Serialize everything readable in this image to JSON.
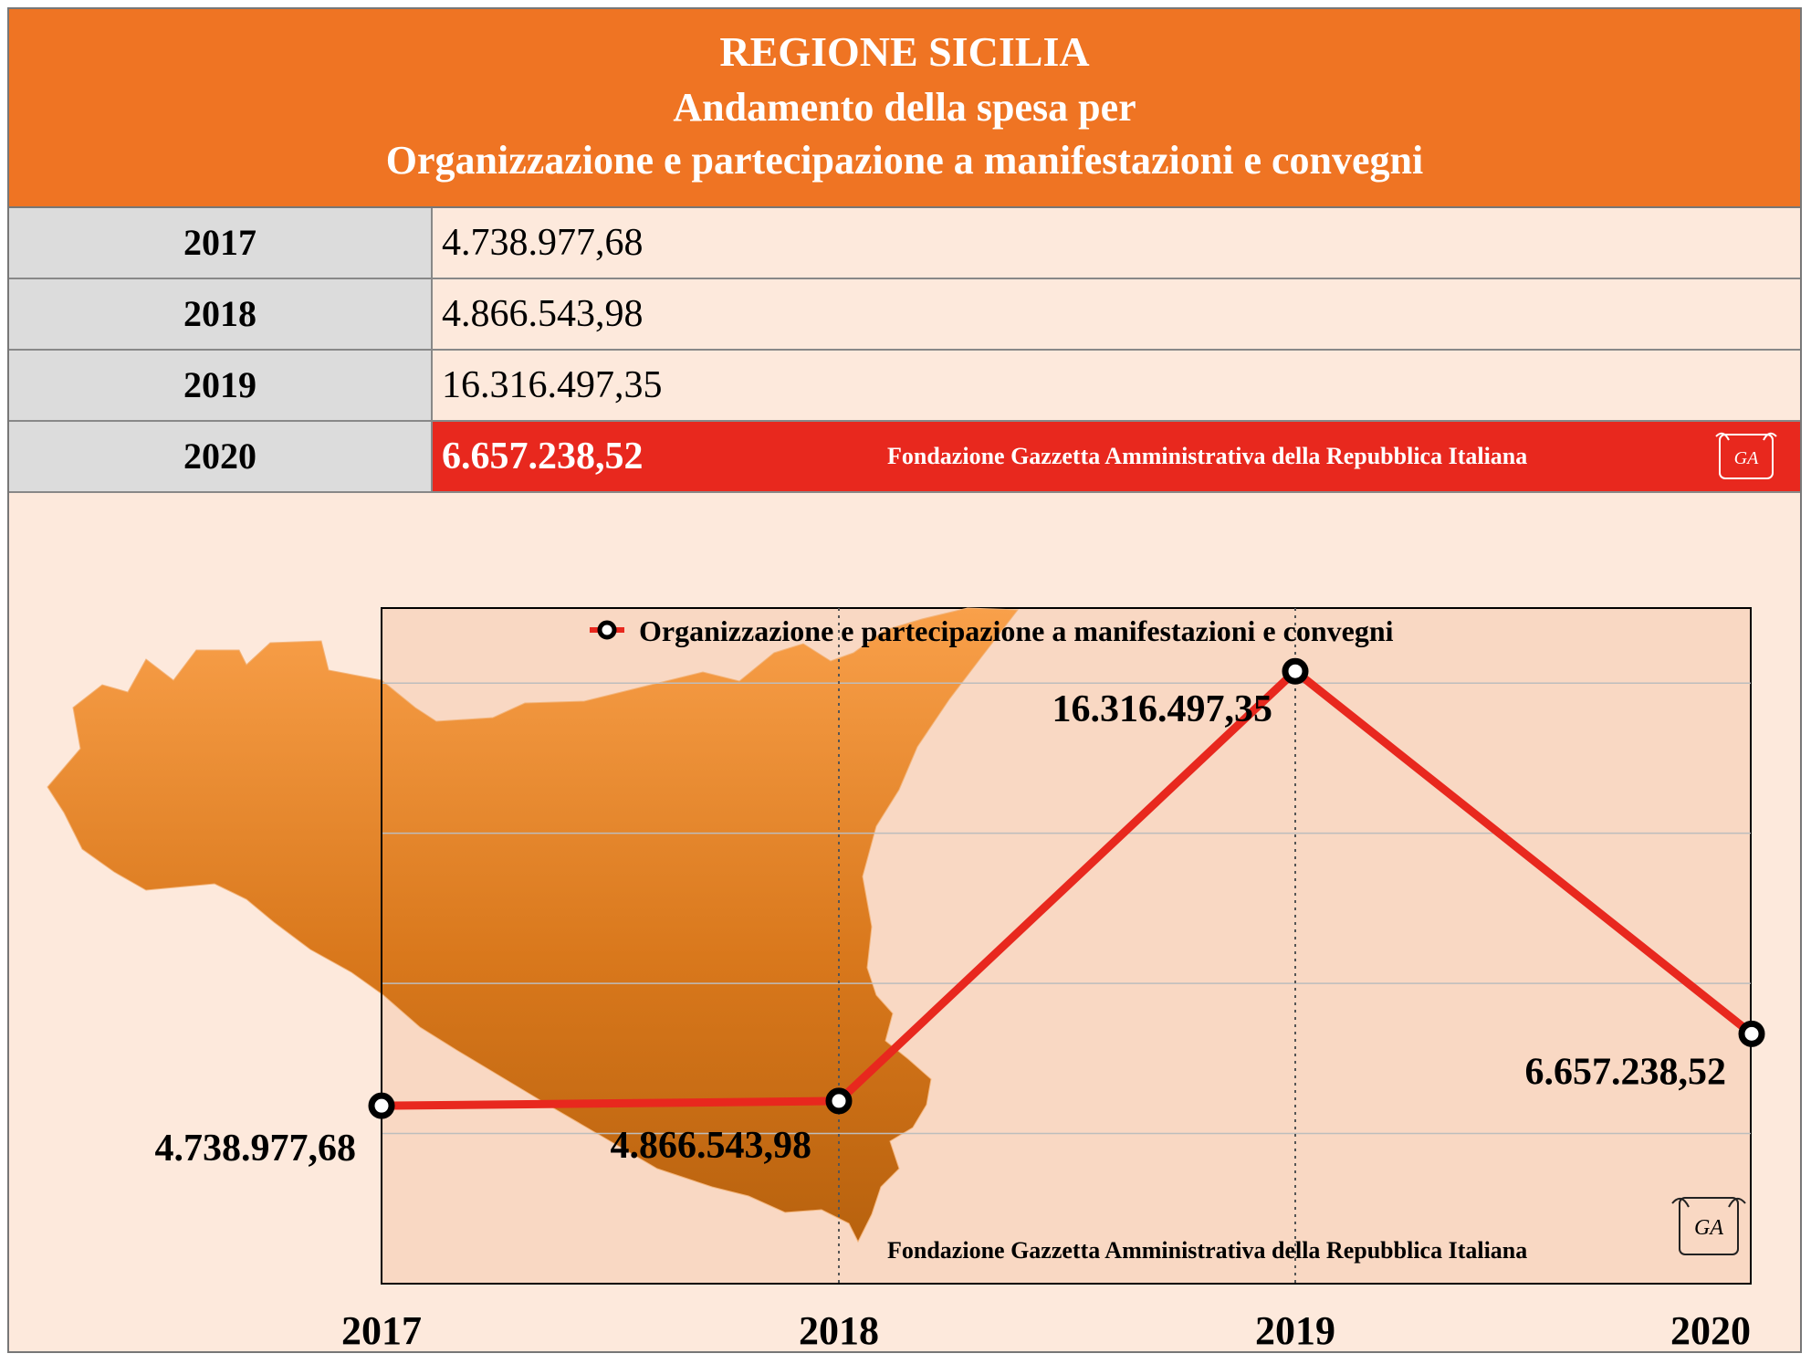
{
  "header": {
    "line1": "REGIONE SICILIA",
    "line2": "Andamento della spesa per",
    "line3": "Organizzazione e partecipazione a manifestazioni e convegni"
  },
  "table": [
    {
      "year": "2017",
      "value": "4.738.977,68"
    },
    {
      "year": "2018",
      "value": "4.866.543,98"
    },
    {
      "year": "2019",
      "value": "16.316.497,35"
    },
    {
      "year": "2020",
      "value": "6.657.238,52"
    }
  ],
  "footer_text": "Fondazione Gazzetta Amministrativa della Repubblica Italiana",
  "seal_text": "GA",
  "colors": {
    "header": "#ef7423",
    "highlight": "#e8281e",
    "line": "#e8281e",
    "map": "#e8903a",
    "background": "#fde9dc"
  },
  "chart_data": {
    "type": "line",
    "categories": [
      "2017",
      "2018",
      "2019",
      "2020"
    ],
    "series": [
      {
        "name": "Organizzazione e partecipazione a manifestazioni e convegni",
        "values": [
          4738977.68,
          4866543.98,
          16316497.35,
          6657238.52
        ],
        "labels": [
          "4.738.977,68",
          "4.866.543,98",
          "16.316.497,35",
          "6.657.238,52"
        ]
      }
    ],
    "ylim": [
      0,
      18000000
    ],
    "grid": true,
    "legend": "top-center"
  }
}
